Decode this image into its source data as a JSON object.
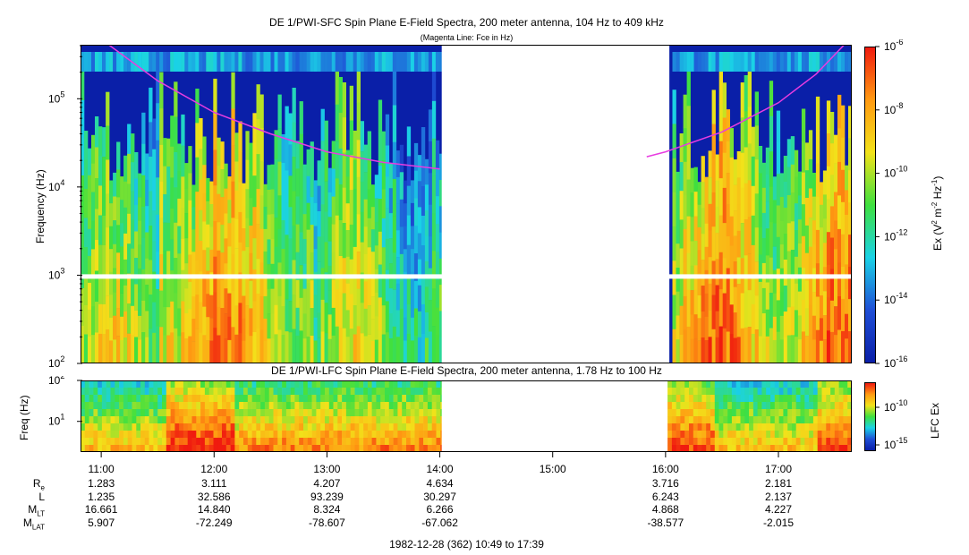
{
  "colors": {
    "deep": "#0a1fa8",
    "blue": "#1f4fd6",
    "cyan": "#1ad2e6",
    "green": "#3fe03f",
    "yellow": "#f2e21a",
    "orange": "#ff9a12",
    "red": "#f01b0f",
    "magenta": "#e83ce0",
    "fill_gap": "#ffffff"
  },
  "chart_data": [
    {
      "type": "heatmap",
      "title": "DE 1/PWI-SFC  Spin Plane E-Field Spectra, 200 meter antenna, 104 Hz to 409 kHz",
      "subtitle": "(Magenta Line: Fce in Hz)",
      "ylabel": "Frequency (Hz)",
      "yscale": "log",
      "ylim": [
        100,
        409000
      ],
      "yticks": [
        {
          "base": "10",
          "exp": "5",
          "value": 100000
        },
        {
          "base": "10",
          "exp": "4",
          "value": 10000
        },
        {
          "base": "10",
          "exp": "3",
          "value": 1000
        },
        {
          "base": "10",
          "exp": "2",
          "value": 100
        }
      ],
      "colorbar": {
        "label_html": [
          "Ex (V",
          "2",
          " m",
          "-2",
          " Hz",
          "-1",
          ")"
        ],
        "scale": "log",
        "range": [
          1e-16,
          1e-06
        ],
        "ticks": [
          {
            "base": "10",
            "exp": "-6"
          },
          {
            "base": "10",
            "exp": "-8"
          },
          {
            "base": "10",
            "exp": "-10"
          },
          {
            "base": "10",
            "exp": "-12"
          },
          {
            "base": "10",
            "exp": "-14"
          },
          {
            "base": "10",
            "exp": "-16"
          }
        ]
      },
      "data_gap": {
        "start": "14:01",
        "end": "16:02"
      },
      "fce_line": {
        "segments": [
          {
            "x": [
              "11:04",
              "11:30",
              "12:00",
              "12:30",
              "13:00",
              "13:30",
              "14:00"
            ],
            "y": [
              409000,
              160000,
              70000,
              40000,
              25000,
              19000,
              16000
            ]
          },
          {
            "x": [
              "15:50",
              "16:00",
              "16:30",
              "17:00",
              "17:20",
              "17:35"
            ],
            "y": [
              22000,
              25000,
              42000,
              90000,
              190000,
              409000
            ]
          }
        ]
      }
    },
    {
      "type": "heatmap",
      "title": "DE 1/PWI-LFC  Spin Plane E-Field Spectra, 200 meter antenna, 1.78 Hz to 100 Hz",
      "ylabel": "Freq (Hz)",
      "yscale": "log",
      "ylim": [
        1.78,
        100
      ],
      "yticks": [
        {
          "base": "10",
          "exp": "2",
          "value": 100
        },
        {
          "base": "10",
          "exp": "1",
          "value": 10
        }
      ],
      "colorbar": {
        "label": "LFC Ex",
        "ticks": [
          {
            "base": "10",
            "exp": "-10"
          },
          {
            "base": "10",
            "exp": "-15"
          }
        ]
      },
      "data_gap": {
        "start": "14:01",
        "end": "16:00"
      }
    }
  ],
  "xaxis": {
    "ticks": [
      "11:00",
      "12:00",
      "13:00",
      "14:00",
      "15:00",
      "16:00",
      "17:00"
    ],
    "start": "10:49",
    "end": "17:39",
    "caption": "1982-12-28 (362) 10:49 to 17:39"
  },
  "ephemeris": {
    "rows": [
      {
        "label": "R",
        "sub": "e",
        "values": [
          "1.283",
          "3.111",
          "4.207",
          "4.634",
          "",
          "3.716",
          "2.181"
        ]
      },
      {
        "label": "L",
        "sub": "",
        "values": [
          "1.235",
          "32.586",
          "93.239",
          "30.297",
          "",
          "6.243",
          "2.137"
        ]
      },
      {
        "label": "M",
        "sub": "LT",
        "values": [
          "16.661",
          "14.840",
          "8.324",
          "6.266",
          "",
          "4.868",
          "4.227"
        ]
      },
      {
        "label": "M",
        "sub": "LAT",
        "values": [
          "5.907",
          "-72.249",
          "-78.607",
          "-67.062",
          "",
          "-38.577",
          "-2.015"
        ]
      }
    ]
  }
}
